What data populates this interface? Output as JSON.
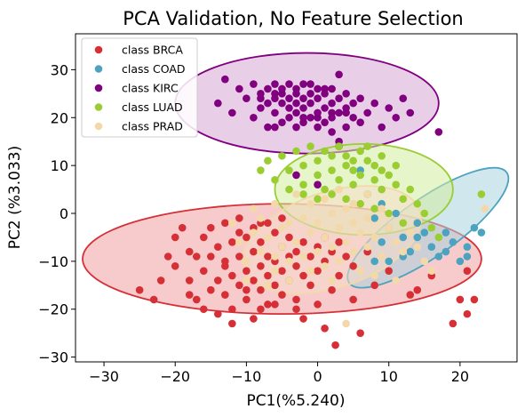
{
  "chart_data": {
    "type": "scatter",
    "title": "PCA Validation, No Feature Selection",
    "xlabel": "PC1(%5.240)",
    "ylabel": "PC2 (%3.033)",
    "xlim": [
      -34,
      28
    ],
    "ylim": [
      -31,
      37.5
    ],
    "xticks": [
      -30,
      -20,
      -10,
      0,
      10,
      20
    ],
    "yticks": [
      -30,
      -20,
      -10,
      0,
      10,
      20,
      30
    ],
    "xtick_labels": [
      "−30",
      "−20",
      "−10",
      "0",
      "10",
      "20"
    ],
    "ytick_labels": [
      "−30",
      "−20",
      "−10",
      "0",
      "10",
      "20",
      "30"
    ],
    "grid": false,
    "legend_position": "top-left",
    "series": [
      {
        "name": "class BRCA",
        "color": "#d62f36",
        "ellipse": {
          "center": [
            -5,
            -9.5
          ],
          "semi_x": 28,
          "semi_y": 11.5,
          "rotation_deg": 0,
          "fill": "#f0a0a3"
        },
        "points": [
          [
            -25,
            -16
          ],
          [
            -23,
            -18
          ],
          [
            -22,
            -14
          ],
          [
            -20,
            -5
          ],
          [
            -20,
            -11
          ],
          [
            -19,
            -3
          ],
          [
            -18,
            -8
          ],
          [
            -18,
            -14
          ],
          [
            -17,
            -9
          ],
          [
            -17,
            -18
          ],
          [
            -16,
            -5
          ],
          [
            -16,
            -12
          ],
          [
            -15,
            -3
          ],
          [
            -15,
            -9
          ],
          [
            -14,
            -7
          ],
          [
            -14,
            -14
          ],
          [
            -14,
            -21
          ],
          [
            -13,
            -2
          ],
          [
            -13,
            -11
          ],
          [
            -13,
            -17
          ],
          [
            -12,
            -6
          ],
          [
            -12,
            -13
          ],
          [
            -12,
            -20
          ],
          [
            -11,
            -1
          ],
          [
            -11,
            -9
          ],
          [
            -11,
            -15
          ],
          [
            -10,
            -5
          ],
          [
            -10,
            -12
          ],
          [
            -10,
            -18
          ],
          [
            -9,
            -3
          ],
          [
            -9,
            -8
          ],
          [
            -9,
            -14
          ],
          [
            -9,
            -22
          ],
          [
            -8,
            -6
          ],
          [
            -8,
            -11
          ],
          [
            -8,
            -16
          ],
          [
            -7,
            -2
          ],
          [
            -7,
            -9
          ],
          [
            -7,
            -13
          ],
          [
            -7,
            -19
          ],
          [
            -6,
            -4
          ],
          [
            -6,
            -10
          ],
          [
            -6,
            -15
          ],
          [
            -5,
            -7
          ],
          [
            -5,
            -12
          ],
          [
            -5,
            -17
          ],
          [
            -4,
            -5
          ],
          [
            -4,
            -9
          ],
          [
            -4,
            -14
          ],
          [
            -3,
            -8
          ],
          [
            -3,
            -11
          ],
          [
            -3,
            -20
          ],
          [
            -2,
            -6
          ],
          [
            -2,
            -13
          ],
          [
            -1,
            -9
          ],
          [
            -1,
            -15
          ],
          [
            0,
            -7
          ],
          [
            0,
            -12
          ],
          [
            1,
            -5
          ],
          [
            1,
            -10
          ],
          [
            1,
            -24
          ],
          [
            2,
            -8
          ],
          [
            2,
            -16
          ],
          [
            2.5,
            -27.5
          ],
          [
            3,
            -6
          ],
          [
            3,
            -13
          ],
          [
            4,
            -9
          ],
          [
            5,
            -11
          ],
          [
            5,
            -18
          ],
          [
            6,
            -25
          ],
          [
            7,
            -8
          ],
          [
            8,
            -15
          ],
          [
            10,
            -12
          ],
          [
            13,
            -17
          ],
          [
            14,
            -16
          ],
          [
            16,
            -13
          ],
          [
            19,
            -23
          ],
          [
            20,
            -18
          ],
          [
            21,
            -21
          ],
          [
            21,
            -12
          ],
          [
            22,
            -18
          ],
          [
            -18,
            -17
          ],
          [
            -21,
            -9
          ],
          [
            -8,
            -20
          ],
          [
            -6,
            -19
          ],
          [
            -3,
            -18
          ],
          [
            -10,
            -16
          ],
          [
            -13,
            -10
          ],
          [
            -15,
            -16
          ],
          [
            -11,
            -4
          ],
          [
            -8,
            -2
          ],
          [
            -5,
            -1
          ],
          [
            -12,
            -23
          ],
          [
            -16,
            -20
          ],
          [
            -2,
            -22
          ],
          [
            0,
            -19
          ]
        ]
      },
      {
        "name": "class COAD",
        "color": "#4ba3bf",
        "ellipse": {
          "center": [
            15.5,
            -3
          ],
          "semi_x": 13.5,
          "semi_y": 6,
          "rotation_deg": -35,
          "fill": "#a9d3df"
        },
        "points": [
          [
            6,
            9
          ],
          [
            7,
            4
          ],
          [
            8,
            -1
          ],
          [
            9,
            2
          ],
          [
            10,
            -3
          ],
          [
            11,
            0
          ],
          [
            12,
            -5
          ],
          [
            13,
            -8
          ],
          [
            14,
            -2
          ],
          [
            15,
            -4
          ],
          [
            16,
            -7
          ],
          [
            17,
            -9
          ],
          [
            18,
            -8
          ],
          [
            19,
            -6
          ],
          [
            20,
            -10
          ],
          [
            21,
            -7
          ],
          [
            22,
            -3
          ],
          [
            23,
            -4
          ],
          [
            21,
            -9
          ],
          [
            18,
            -4
          ],
          [
            12,
            -9
          ],
          [
            9,
            -6
          ],
          [
            10,
            -10
          ],
          [
            8,
            -10
          ],
          [
            14,
            -5
          ]
        ]
      },
      {
        "name": "class KIRC",
        "color": "#800080",
        "ellipse": {
          "center": [
            -1.5,
            23
          ],
          "semi_x": 18.5,
          "semi_y": 10.5,
          "rotation_deg": 0,
          "fill": "#d7a6d6"
        },
        "points": [
          [
            -14,
            23
          ],
          [
            -13,
            28
          ],
          [
            -12,
            21
          ],
          [
            -11,
            26
          ],
          [
            -10,
            24
          ],
          [
            -9,
            20
          ],
          [
            -9,
            27
          ],
          [
            -8,
            22
          ],
          [
            -8,
            25
          ],
          [
            -7,
            18
          ],
          [
            -7,
            26
          ],
          [
            -6,
            21
          ],
          [
            -6,
            24
          ],
          [
            -6,
            27
          ],
          [
            -5,
            19
          ],
          [
            -5,
            23
          ],
          [
            -5,
            25
          ],
          [
            -4,
            20
          ],
          [
            -4,
            22
          ],
          [
            -4,
            24
          ],
          [
            -4,
            27
          ],
          [
            -3,
            18
          ],
          [
            -3,
            21
          ],
          [
            -3,
            23
          ],
          [
            -3,
            26
          ],
          [
            -2,
            19
          ],
          [
            -2,
            22
          ],
          [
            -2,
            24
          ],
          [
            -2,
            27
          ],
          [
            -1,
            20
          ],
          [
            -1,
            23
          ],
          [
            -1,
            25
          ],
          [
            0,
            18
          ],
          [
            0,
            21
          ],
          [
            0,
            24
          ],
          [
            0,
            26
          ],
          [
            1,
            19
          ],
          [
            1,
            22
          ],
          [
            1,
            25
          ],
          [
            2,
            17
          ],
          [
            2,
            20
          ],
          [
            2,
            23
          ],
          [
            2,
            26
          ],
          [
            3,
            29
          ],
          [
            3,
            21
          ],
          [
            3,
            24
          ],
          [
            4,
            18
          ],
          [
            4,
            22
          ],
          [
            4,
            25
          ],
          [
            5,
            20
          ],
          [
            5,
            23
          ],
          [
            6,
            19
          ],
          [
            6,
            24
          ],
          [
            7,
            21
          ],
          [
            8,
            23
          ],
          [
            9,
            18
          ],
          [
            10,
            22
          ],
          [
            11,
            20
          ],
          [
            12,
            24
          ],
          [
            13,
            21
          ],
          [
            17,
            17
          ],
          [
            -8,
            24
          ],
          [
            -7,
            23
          ],
          [
            -6,
            25
          ],
          [
            -5,
            26
          ],
          [
            -1,
            27
          ],
          [
            1,
            26
          ],
          [
            -3,
            25
          ],
          [
            -2,
            20
          ],
          [
            0,
            20
          ],
          [
            2,
            21
          ],
          [
            4,
            21
          ],
          [
            3,
            15
          ],
          [
            3,
            14
          ],
          [
            -3,
            8
          ],
          [
            0,
            6
          ],
          [
            -6,
            18
          ]
        ]
      },
      {
        "name": "class LUAD",
        "color": "#9acd32",
        "ellipse": {
          "center": [
            6.5,
            5
          ],
          "semi_x": 12.5,
          "semi_y": 9.5,
          "rotation_deg": 0,
          "fill": "#d4eca0"
        },
        "points": [
          [
            -8,
            9
          ],
          [
            -7,
            11
          ],
          [
            -6,
            7
          ],
          [
            -5,
            12
          ],
          [
            -4,
            9
          ],
          [
            -3,
            13
          ],
          [
            -2,
            6
          ],
          [
            -2,
            10
          ],
          [
            -1,
            14
          ],
          [
            0,
            8
          ],
          [
            0,
            11
          ],
          [
            1,
            5
          ],
          [
            1,
            13
          ],
          [
            2,
            9
          ],
          [
            2,
            12
          ],
          [
            3,
            7
          ],
          [
            3,
            14
          ],
          [
            4,
            10
          ],
          [
            4,
            12
          ],
          [
            5,
            6
          ],
          [
            5,
            9
          ],
          [
            6,
            13
          ],
          [
            6,
            8
          ],
          [
            7,
            11
          ],
          [
            8,
            7
          ],
          [
            8,
            10
          ],
          [
            9,
            5
          ],
          [
            9,
            12
          ],
          [
            10,
            8
          ],
          [
            11,
            6
          ],
          [
            11,
            10
          ],
          [
            12,
            3
          ],
          [
            13,
            5
          ],
          [
            14,
            2
          ],
          [
            15,
            0
          ],
          [
            16,
            -3
          ],
          [
            17,
            -5
          ],
          [
            23,
            4
          ],
          [
            4,
            3
          ],
          [
            6,
            2
          ],
          [
            8,
            1
          ],
          [
            10,
            0
          ],
          [
            12,
            -2
          ],
          [
            2,
            4
          ],
          [
            0,
            3
          ],
          [
            -2,
            4
          ],
          [
            -4,
            5
          ],
          [
            5,
            11
          ],
          [
            7,
            14
          ],
          [
            9,
            9
          ]
        ]
      },
      {
        "name": "class PRAD",
        "color": "#f3d9a9",
        "ellipse": {
          "center": [
            2,
            -5.5
          ],
          "semi_x": 13,
          "semi_y": 10,
          "rotation_deg": -18,
          "fill": "#f8dccb"
        },
        "points": [
          [
            -12,
            -2
          ],
          [
            -11,
            -6
          ],
          [
            -10,
            -10
          ],
          [
            -9,
            -4
          ],
          [
            -8,
            -1
          ],
          [
            -8,
            -8
          ],
          [
            -7,
            -5
          ],
          [
            -6,
            -9
          ],
          [
            -6,
            -12
          ],
          [
            -5,
            -3
          ],
          [
            -5,
            -7
          ],
          [
            -4,
            -2
          ],
          [
            -4,
            -10
          ],
          [
            -3,
            -6
          ],
          [
            -2,
            -1
          ],
          [
            -2,
            -9
          ],
          [
            -1,
            -4
          ],
          [
            -1,
            -12
          ],
          [
            0,
            -2
          ],
          [
            0,
            -8
          ],
          [
            1,
            -5
          ],
          [
            1,
            -11
          ],
          [
            2,
            0
          ],
          [
            2,
            -7
          ],
          [
            3,
            -3
          ],
          [
            3,
            -10
          ],
          [
            4,
            -6
          ],
          [
            4,
            1
          ],
          [
            5,
            -2
          ],
          [
            5,
            -8
          ],
          [
            6,
            -4
          ],
          [
            6,
            -12
          ],
          [
            7,
            -1
          ],
          [
            7,
            -7
          ],
          [
            8,
            -5
          ],
          [
            9,
            -9
          ],
          [
            10,
            -3
          ],
          [
            11,
            -6
          ],
          [
            12,
            -8
          ],
          [
            13,
            -4
          ],
          [
            14,
            -7
          ],
          [
            15,
            -10
          ],
          [
            16,
            -12
          ],
          [
            23.5,
            1
          ],
          [
            -3,
            4
          ],
          [
            -1,
            2
          ],
          [
            1,
            3
          ],
          [
            3,
            5
          ],
          [
            5,
            2
          ],
          [
            7,
            4
          ],
          [
            9,
            1
          ],
          [
            -6,
            2
          ],
          [
            -9,
            1
          ],
          [
            -10,
            -14
          ],
          [
            -7,
            -15
          ],
          [
            -4,
            -14
          ],
          [
            2,
            -14
          ],
          [
            4,
            -23
          ],
          [
            8,
            -13
          ],
          [
            11,
            -14
          ]
        ]
      }
    ]
  }
}
